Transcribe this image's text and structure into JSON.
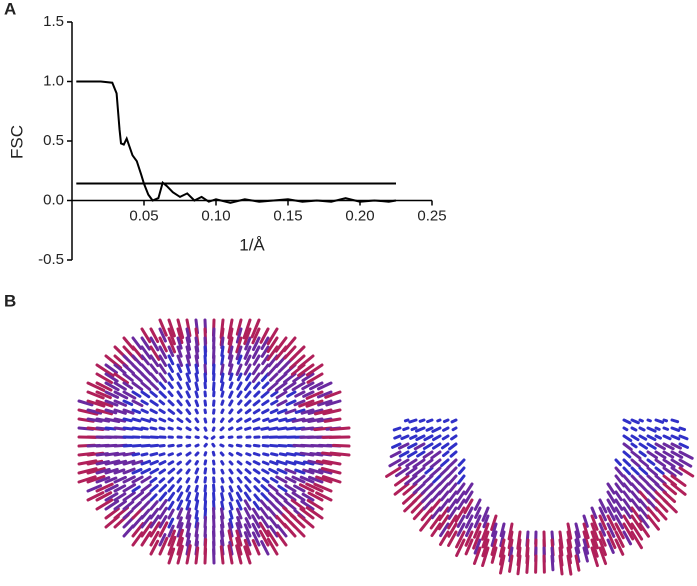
{
  "panel_a": {
    "label": "A"
  },
  "chart_data": {
    "type": "line",
    "ylabel": "FSC",
    "xlabel": "1/Å",
    "xlim": [
      0,
      0.25
    ],
    "ylim": [
      -0.5,
      1.5
    ],
    "xticks": [
      0.05,
      {
        "value": 0.1,
        "label": "0.10"
      },
      0.15,
      {
        "value": 0.2,
        "label": "0.20"
      },
      0.25
    ],
    "yticks": [
      {
        "value": -0.5,
        "label": "-0.5"
      },
      {
        "value": 0,
        "label": "0.0"
      },
      0.5,
      {
        "value": 1,
        "label": "1.0"
      },
      1.5
    ],
    "series": [
      {
        "color": "#000000",
        "x": [
          0.003,
          0.02,
          0.028,
          0.031,
          0.033,
          0.034,
          0.036,
          0.038,
          0.04,
          0.042,
          0.045,
          0.048,
          0.05,
          0.053,
          0.056,
          0.06,
          0.063,
          0.066,
          0.07,
          0.075,
          0.08,
          0.085,
          0.09,
          0.095,
          0.1,
          0.11,
          0.12,
          0.13,
          0.14,
          0.15,
          0.16,
          0.17,
          0.18,
          0.19,
          0.2,
          0.21,
          0.22,
          0.225
        ],
        "values": [
          1.0,
          1.0,
          0.99,
          0.9,
          0.6,
          0.48,
          0.47,
          0.52,
          0.45,
          0.38,
          0.33,
          0.22,
          0.14,
          0.05,
          0.0,
          0.02,
          0.15,
          0.12,
          0.07,
          0.03,
          0.06,
          0.0,
          0.03,
          -0.01,
          0.01,
          -0.02,
          0.01,
          -0.01,
          0.0,
          0.01,
          -0.01,
          0.0,
          -0.01,
          0.02,
          -0.01,
          0.0,
          -0.01,
          0.0
        ]
      },
      {
        "color": "#000000",
        "x": [
          0.003,
          0.225
        ],
        "values": [
          0.143,
          0.143
        ]
      }
    ]
  },
  "panel_b": {
    "label": "B"
  }
}
